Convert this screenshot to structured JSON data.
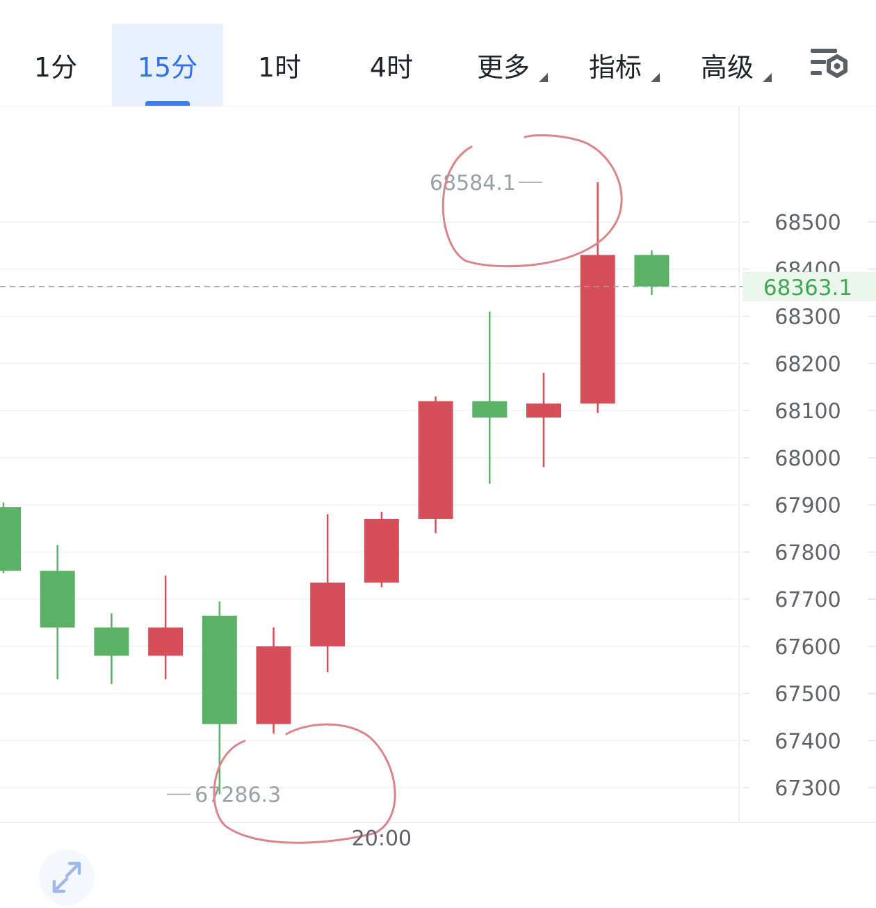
{
  "tabs": [
    {
      "label": "1分",
      "active": false,
      "dropdown": false
    },
    {
      "label": "15分",
      "active": true,
      "dropdown": false
    },
    {
      "label": "1时",
      "active": false,
      "dropdown": false
    },
    {
      "label": "4时",
      "active": false,
      "dropdown": false
    },
    {
      "label": "更多",
      "active": false,
      "dropdown": true
    },
    {
      "label": "指标",
      "active": false,
      "dropdown": true
    },
    {
      "label": "高级",
      "active": false,
      "dropdown": true
    }
  ],
  "icons": {
    "settings": "chart-settings-icon",
    "expand": "expand-icon"
  },
  "chart_data": {
    "type": "candlestick",
    "y_ticks": [
      68500,
      68400,
      68300,
      68200,
      68100,
      68000,
      67900,
      67800,
      67700,
      67600,
      67500,
      67400,
      67300
    ],
    "ylim": [
      67225,
      68745
    ],
    "x_labels": [
      {
        "index": 7,
        "label": "20:00"
      }
    ],
    "last_price": 68363.1,
    "last_price_label": "68363.1",
    "high_marker": {
      "index": 10,
      "value": 68584.1,
      "label": "68584.1"
    },
    "low_marker": {
      "index": 3,
      "value": 67286.3,
      "label": "67286.3"
    },
    "colors": {
      "up": "#5bb266",
      "down": "#d64e57",
      "last_price": "#43a652",
      "axis_text": "#5f6368",
      "annotation": "#d9858a"
    },
    "candles": [
      {
        "open": 67760,
        "high": 67905,
        "low": 67755,
        "close": 67895
      },
      {
        "open": 67640,
        "high": 67815,
        "low": 67530,
        "close": 67760
      },
      {
        "open": 67580,
        "high": 67670,
        "low": 67520,
        "close": 67640
      },
      {
        "open": 67640,
        "high": 67750,
        "low": 67530,
        "close": 67580
      },
      {
        "open": 67435,
        "high": 67695,
        "low": 67286.3,
        "close": 67665
      },
      {
        "open": 67600,
        "high": 67640,
        "low": 67415,
        "close": 67435
      },
      {
        "open": 67735,
        "high": 67880,
        "low": 67545,
        "close": 67600
      },
      {
        "open": 67870,
        "high": 67885,
        "low": 67725,
        "close": 67735
      },
      {
        "open": 68120,
        "high": 68130,
        "low": 67840,
        "close": 67870
      },
      {
        "open": 68085,
        "high": 68310,
        "low": 67945,
        "close": 68120
      },
      {
        "open": 68115,
        "high": 68180,
        "low": 67980,
        "close": 68085
      },
      {
        "open": 68430,
        "high": 68584.1,
        "low": 68095,
        "close": 68115
      },
      {
        "open": 68363.1,
        "high": 68440,
        "low": 68345,
        "close": 68430
      }
    ]
  }
}
